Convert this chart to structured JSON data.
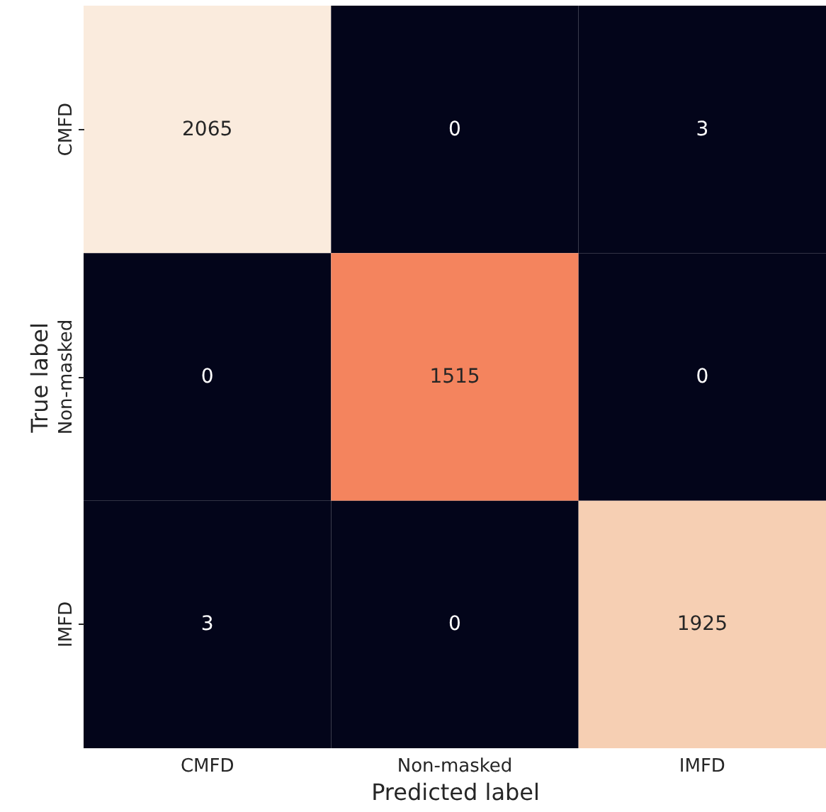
{
  "chart_data": {
    "type": "heatmap",
    "xlabel": "Predicted label",
    "ylabel": "True label",
    "categories": [
      "CMFD",
      "Non-masked",
      "IMFD"
    ],
    "y_categories": [
      "CMFD",
      "Non-masked",
      "IMFD"
    ],
    "cells": [
      [
        2065,
        0,
        3
      ],
      [
        0,
        1515,
        0
      ],
      [
        3,
        0,
        1925
      ]
    ],
    "colors": [
      "#faebdd",
      "#03051a",
      "#03051a",
      "#03051a",
      "#f4845e",
      "#03051a",
      "#03051a",
      "#03051a",
      "#f6cfb3"
    ],
    "data_labels": true
  }
}
